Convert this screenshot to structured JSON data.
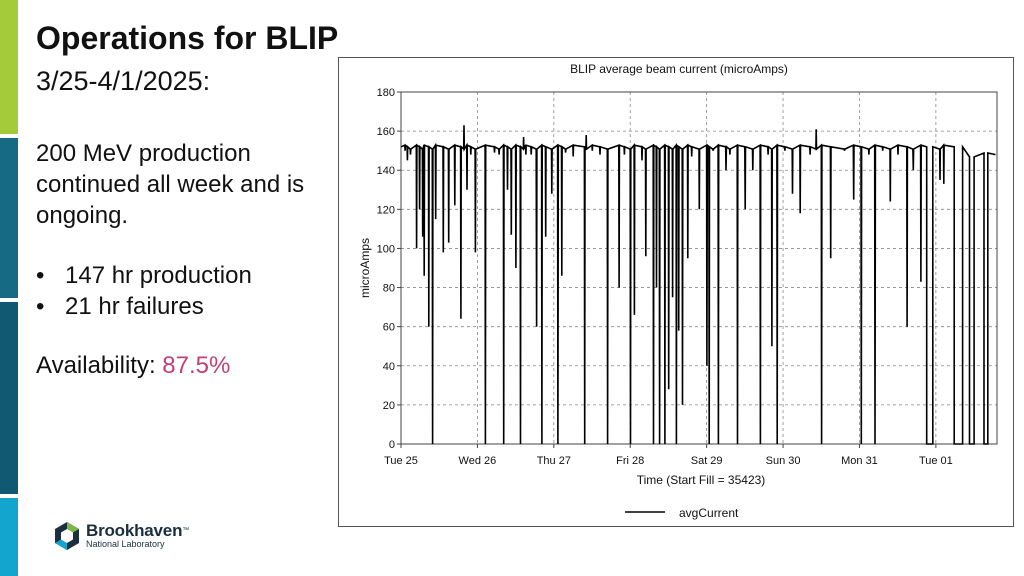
{
  "slide": {
    "title": "Operations for BLIP",
    "date_range": "3/25-4/1/2025:",
    "summary": "200 MeV production continued all week and is ongoing.",
    "bullets": [
      "147 hr production",
      "21 hr failures"
    ],
    "availability_label": "Availability:",
    "availability_value": "87.5%",
    "colors": {
      "accent_green": "#a4cc3a",
      "accent_teal": "#176a84",
      "accent_dark_teal": "#0f5a72",
      "accent_cyan": "#14a5cf",
      "availability": "#c0407a"
    }
  },
  "logo": {
    "name": "Brookhaven",
    "mark": "™",
    "sub": "National Laboratory",
    "icon": "hexagon-logo-icon"
  },
  "chart_data": {
    "type": "line",
    "title": "BLIP average beam current (microAmps)",
    "xlabel": "Time (Start Fill = 35423)",
    "ylabel": "microAmps",
    "ylim": [
      0,
      180
    ],
    "yticks": [
      0,
      20,
      40,
      60,
      80,
      100,
      120,
      140,
      160,
      180
    ],
    "xlim": [
      0,
      7.8
    ],
    "xticks": [
      {
        "x": 0,
        "label": "Tue 25"
      },
      {
        "x": 1,
        "label": "Wed 26"
      },
      {
        "x": 2,
        "label": "Thu 27"
      },
      {
        "x": 3,
        "label": "Fri 28"
      },
      {
        "x": 4,
        "label": "Sat 29"
      },
      {
        "x": 5,
        "label": "Sun 30"
      },
      {
        "x": 6,
        "label": "Mon 31"
      },
      {
        "x": 7,
        "label": "Tue 01"
      }
    ],
    "grid": true,
    "legend_position": "bottom",
    "series": [
      {
        "name": "avgCurrent",
        "color": "#000000",
        "baseline": 152,
        "drops": [
          [
            0.05,
            150
          ],
          [
            0.08,
            145
          ],
          [
            0.12,
            148
          ],
          [
            0.2,
            100
          ],
          [
            0.24,
            120
          ],
          [
            0.28,
            106
          ],
          [
            0.3,
            86
          ],
          [
            0.36,
            60
          ],
          [
            0.41,
            0
          ],
          [
            0.45,
            115
          ],
          [
            0.55,
            98
          ],
          [
            0.62,
            103
          ],
          [
            0.7,
            122
          ],
          [
            0.78,
            64
          ],
          [
            0.86,
            130
          ],
          [
            0.91,
            148
          ],
          [
            0.97,
            98
          ],
          [
            1.1,
            0
          ],
          [
            1.22,
            149
          ],
          [
            1.28,
            148
          ],
          [
            1.34,
            0
          ],
          [
            1.39,
            130
          ],
          [
            1.44,
            107
          ],
          [
            1.5,
            90
          ],
          [
            1.56,
            0
          ],
          [
            1.63,
            148
          ],
          [
            1.7,
            148
          ],
          [
            1.77,
            60
          ],
          [
            1.84,
            0
          ],
          [
            1.89,
            106
          ],
          [
            1.97,
            128
          ],
          [
            2.05,
            0
          ],
          [
            2.1,
            86
          ],
          [
            2.15,
            149
          ],
          [
            2.25,
            147
          ],
          [
            2.4,
            0
          ],
          [
            2.5,
            150
          ],
          [
            2.6,
            148
          ],
          [
            2.7,
            0
          ],
          [
            2.85,
            80
          ],
          [
            2.92,
            148
          ],
          [
            3.0,
            0
          ],
          [
            3.05,
            66
          ],
          [
            3.15,
            145
          ],
          [
            3.2,
            96
          ],
          [
            3.3,
            0
          ],
          [
            3.34,
            80
          ],
          [
            3.38,
            0
          ],
          [
            3.45,
            0
          ],
          [
            3.5,
            28
          ],
          [
            3.55,
            75
          ],
          [
            3.6,
            0
          ],
          [
            3.63,
            58
          ],
          [
            3.68,
            20
          ],
          [
            3.75,
            95
          ],
          [
            3.8,
            147
          ],
          [
            3.9,
            120
          ],
          [
            4.0,
            40
          ],
          [
            4.03,
            0
          ],
          [
            4.08,
            150
          ],
          [
            4.15,
            0
          ],
          [
            4.25,
            140
          ],
          [
            4.3,
            148
          ],
          [
            4.4,
            0
          ],
          [
            4.5,
            120
          ],
          [
            4.6,
            140
          ],
          [
            4.7,
            0
          ],
          [
            4.8,
            148
          ],
          [
            4.85,
            50
          ],
          [
            4.92,
            0
          ],
          [
            5.02,
            150
          ],
          [
            5.12,
            128
          ],
          [
            5.22,
            118
          ],
          [
            5.35,
            148
          ],
          [
            5.5,
            0
          ],
          [
            5.62,
            95
          ],
          [
            5.8,
            150
          ],
          [
            5.92,
            125
          ],
          [
            6.02,
            0
          ],
          [
            6.12,
            148
          ],
          [
            6.2,
            0
          ],
          [
            6.3,
            150
          ],
          [
            6.4,
            124
          ],
          [
            6.5,
            148
          ],
          [
            6.62,
            60
          ],
          [
            6.7,
            140
          ],
          [
            6.8,
            83
          ],
          [
            6.95,
            136
          ],
          [
            7.05,
            135
          ],
          [
            7.1,
            133
          ]
        ],
        "outages": [
          [
            6.88,
            6.96
          ],
          [
            7.24,
            7.35
          ],
          [
            7.44,
            7.5
          ],
          [
            7.63,
            7.68
          ]
        ],
        "spikes": [
          [
            0.82,
            163
          ],
          [
            1.6,
            157
          ],
          [
            2.42,
            158
          ],
          [
            5.43,
            161
          ]
        ],
        "end_segment": {
          "start": 7.32,
          "end": 7.78,
          "level": 148
        }
      }
    ]
  }
}
